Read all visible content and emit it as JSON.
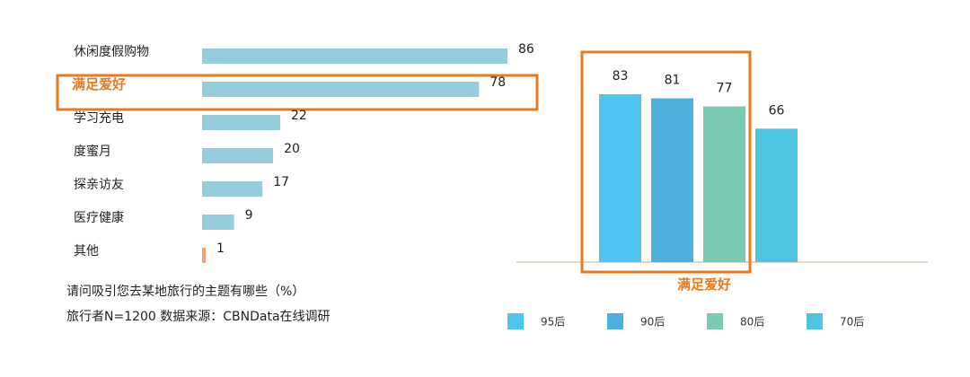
{
  "chart_data": [
    {
      "type": "bar",
      "orientation": "horizontal",
      "categories": [
        "休闲度假购物",
        "满足爱好",
        "学习充电",
        "度蜜月",
        "探亲访友",
        "医疗健康",
        "其他"
      ],
      "values": [
        86,
        78,
        22,
        20,
        17,
        9,
        1
      ],
      "highlighted_category": "满足爱好",
      "colors": {
        "bar": "#95cddf",
        "other_bar": "#f3a274",
        "highlight": "#e8791c"
      },
      "notes": [
        "请问吸引您去某地旅行的主题有哪些（%）",
        "旅行者N=1200 数据来源：CBNData在线调研"
      ]
    },
    {
      "type": "bar",
      "categories": [
        "满足爱好"
      ],
      "series": [
        {
          "name": "95后",
          "values": [
            83
          ],
          "color": "#4fc4f0"
        },
        {
          "name": "90后",
          "values": [
            81
          ],
          "color": "#4db0e0"
        },
        {
          "name": "80后",
          "values": [
            77
          ],
          "color": "#79cab3"
        },
        {
          "name": "70后",
          "values": [
            66
          ],
          "color": "#4ec4e2"
        }
      ],
      "legend": "bottom",
      "colors": {
        "highlight": "#e8791c",
        "baseline": "#ddd9c8"
      }
    }
  ]
}
